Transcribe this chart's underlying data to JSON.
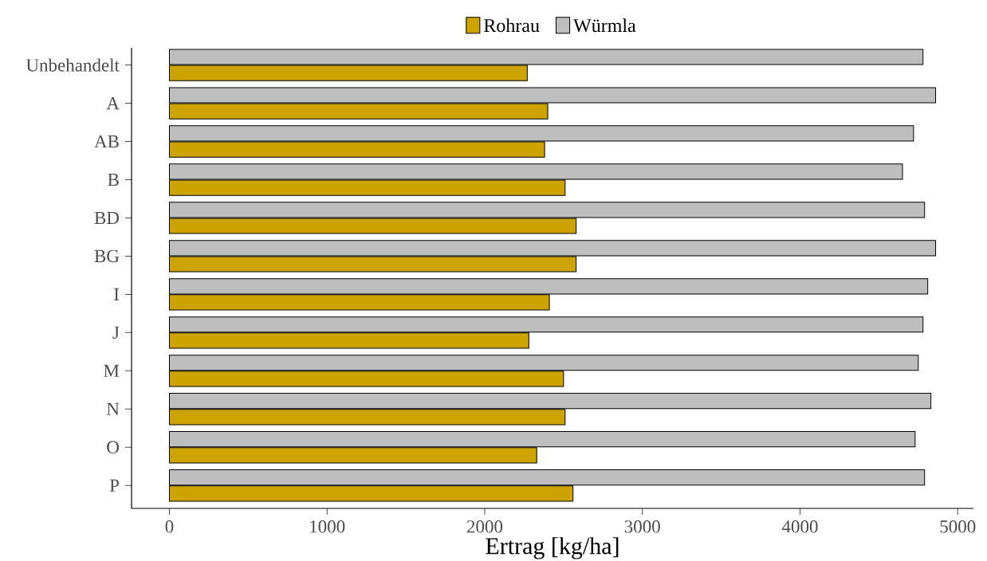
{
  "chart_data": {
    "type": "bar",
    "orientation": "horizontal",
    "xlabel": "Ertrag [kg/ha]",
    "categories": [
      "Unbehandelt",
      "A",
      "AB",
      "B",
      "BD",
      "BG",
      "I",
      "J",
      "M",
      "N",
      "O",
      "P"
    ],
    "series": [
      {
        "name": "Rohrau",
        "color": "#cca300",
        "values": [
          2270,
          2400,
          2380,
          2510,
          2580,
          2580,
          2410,
          2280,
          2500,
          2510,
          2330,
          2560
        ]
      },
      {
        "name": "Würmla",
        "color": "#bebebe",
        "values": [
          4780,
          4860,
          4720,
          4650,
          4790,
          4860,
          4810,
          4780,
          4750,
          4830,
          4730,
          4790
        ]
      }
    ],
    "xlim": [
      -240,
      5100
    ],
    "xticks": [
      0,
      1000,
      2000,
      3000,
      4000,
      5000
    ],
    "legend": "top",
    "grid": false
  }
}
